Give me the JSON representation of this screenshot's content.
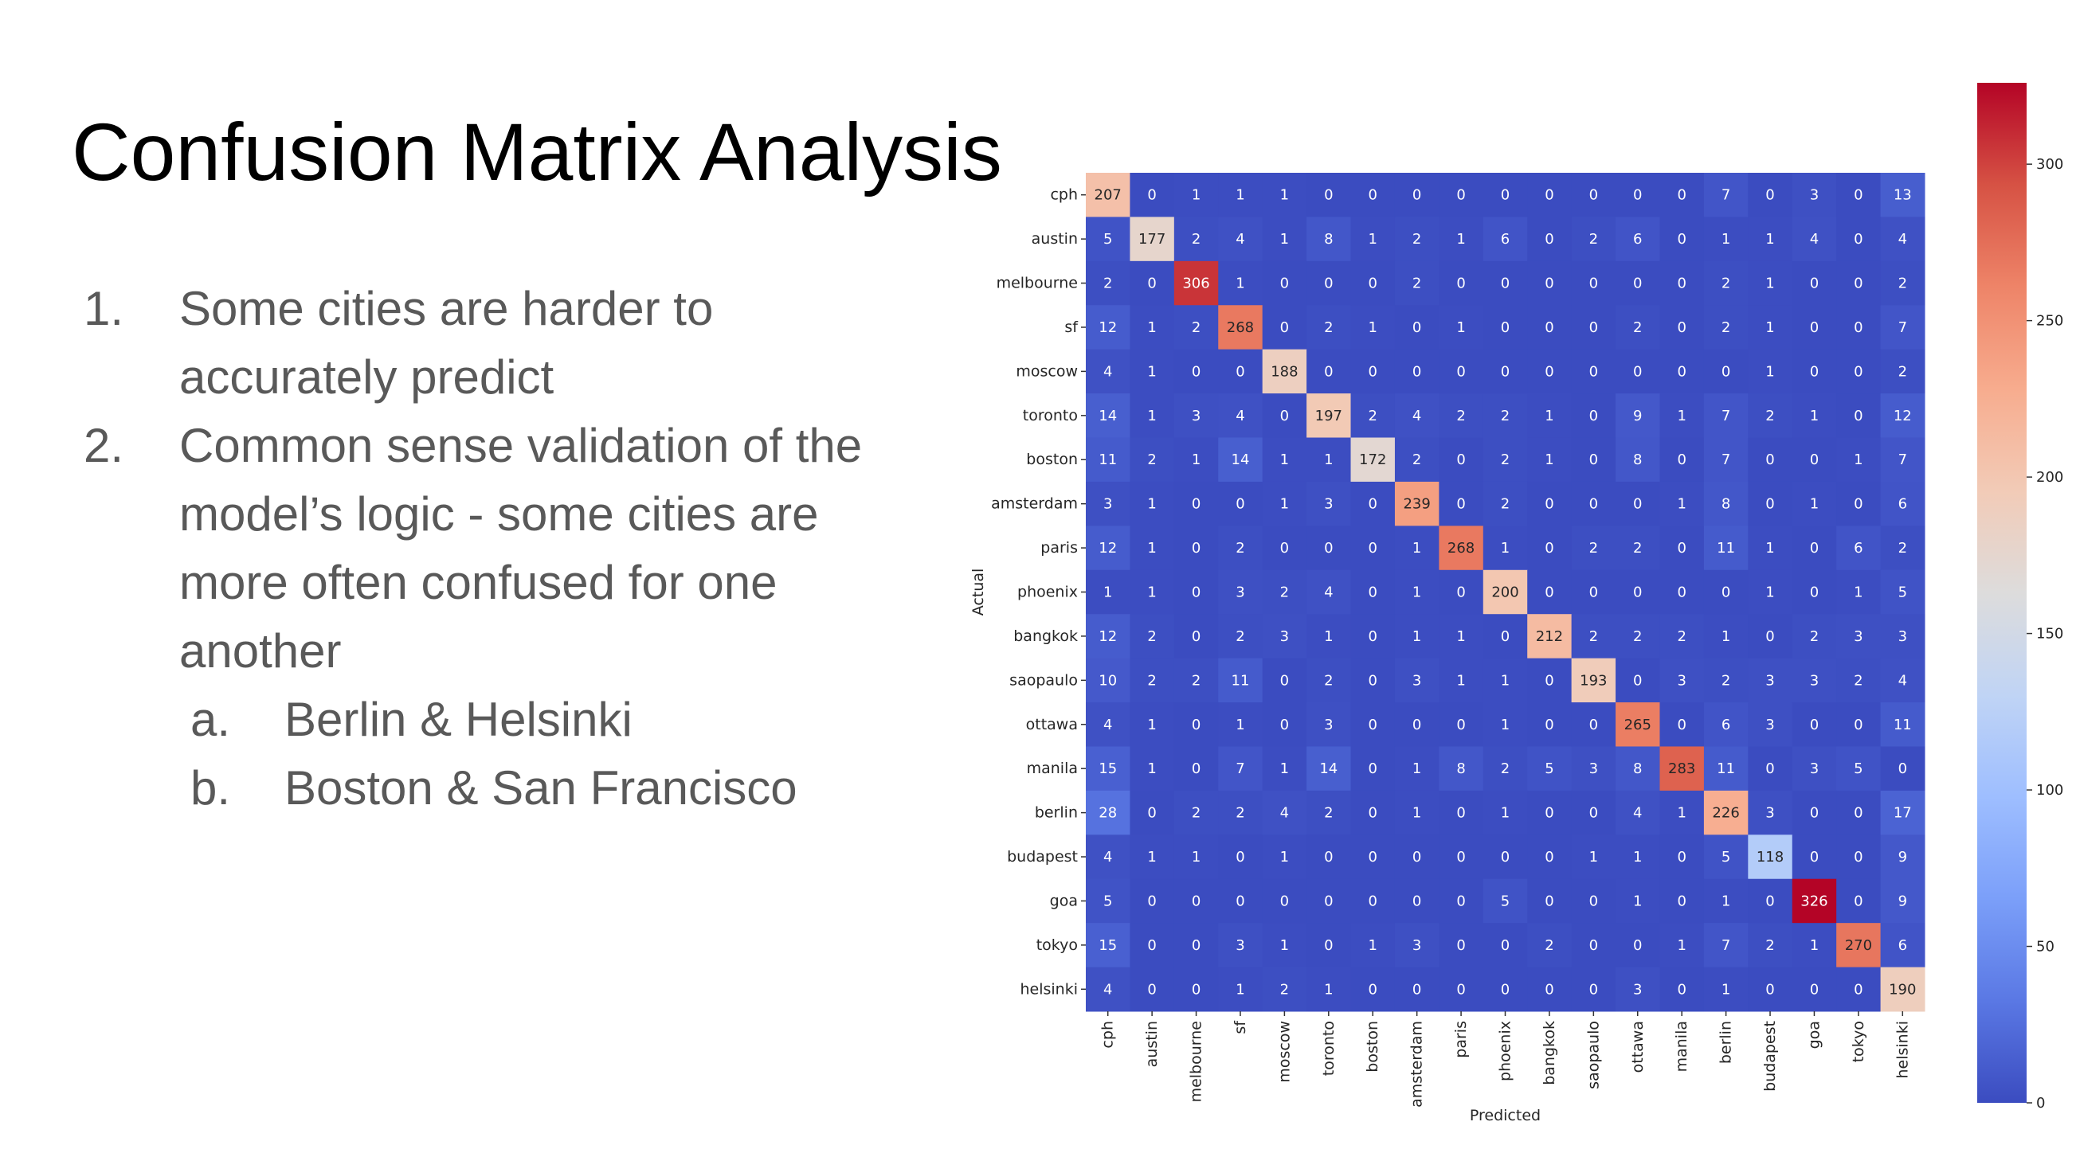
{
  "slide": {
    "title": "Confusion Matrix Analysis",
    "items": [
      {
        "number": "1.",
        "text": "Some cities are harder to accurately predict"
      },
      {
        "number": "2.",
        "text": "Common sense validation of the model’s logic - some cities are more often confused for one another",
        "subitems": [
          {
            "number": "a.",
            "text": "Berlin & Helsinki"
          },
          {
            "number": "b.",
            "text": "Boston & San Francisco"
          }
        ]
      }
    ]
  },
  "chart_data": {
    "type": "heatmap",
    "x_label": "Predicted",
    "y_label": "Actual",
    "categories": [
      "cph",
      "austin",
      "melbourne",
      "sf",
      "moscow",
      "toronto",
      "boston",
      "amsterdam",
      "paris",
      "phoenix",
      "bangkok",
      "saopaulo",
      "ottawa",
      "manila",
      "berlin",
      "budapest",
      "goa",
      "tokyo",
      "helsinki"
    ],
    "values": [
      [
        207,
        0,
        1,
        1,
        1,
        0,
        0,
        0,
        0,
        0,
        0,
        0,
        0,
        0,
        7,
        0,
        3,
        0,
        13
      ],
      [
        5,
        177,
        2,
        4,
        1,
        8,
        1,
        2,
        1,
        6,
        0,
        2,
        6,
        0,
        1,
        1,
        4,
        0,
        4
      ],
      [
        2,
        0,
        306,
        1,
        0,
        0,
        0,
        2,
        0,
        0,
        0,
        0,
        0,
        0,
        2,
        1,
        0,
        0,
        2
      ],
      [
        12,
        1,
        2,
        268,
        0,
        2,
        1,
        0,
        1,
        0,
        0,
        0,
        2,
        0,
        2,
        1,
        0,
        0,
        7
      ],
      [
        4,
        1,
        0,
        0,
        188,
        0,
        0,
        0,
        0,
        0,
        0,
        0,
        0,
        0,
        0,
        1,
        0,
        0,
        2
      ],
      [
        14,
        1,
        3,
        4,
        0,
        197,
        2,
        4,
        2,
        2,
        1,
        0,
        9,
        1,
        7,
        2,
        1,
        0,
        12
      ],
      [
        11,
        2,
        1,
        14,
        1,
        1,
        172,
        2,
        0,
        2,
        1,
        0,
        8,
        0,
        7,
        0,
        0,
        1,
        7
      ],
      [
        3,
        1,
        0,
        0,
        1,
        3,
        0,
        239,
        0,
        2,
        0,
        0,
        0,
        1,
        8,
        0,
        1,
        0,
        6
      ],
      [
        12,
        1,
        0,
        2,
        0,
        0,
        0,
        1,
        268,
        1,
        0,
        2,
        2,
        0,
        11,
        1,
        0,
        6,
        2
      ],
      [
        1,
        1,
        0,
        3,
        2,
        4,
        0,
        1,
        0,
        200,
        0,
        0,
        0,
        0,
        0,
        1,
        0,
        1,
        5
      ],
      [
        12,
        2,
        0,
        2,
        3,
        1,
        0,
        1,
        1,
        0,
        212,
        2,
        2,
        2,
        1,
        0,
        2,
        3,
        3
      ],
      [
        10,
        2,
        2,
        11,
        0,
        2,
        0,
        3,
        1,
        1,
        0,
        193,
        0,
        3,
        2,
        3,
        3,
        2,
        4
      ],
      [
        4,
        1,
        0,
        1,
        0,
        3,
        0,
        0,
        0,
        1,
        0,
        0,
        265,
        0,
        6,
        3,
        0,
        0,
        11
      ],
      [
        15,
        1,
        0,
        7,
        1,
        14,
        0,
        1,
        8,
        2,
        5,
        3,
        8,
        283,
        11,
        0,
        3,
        5,
        0
      ],
      [
        28,
        0,
        2,
        2,
        4,
        2,
        0,
        1,
        0,
        1,
        0,
        0,
        4,
        1,
        226,
        3,
        0,
        0,
        17
      ],
      [
        4,
        1,
        1,
        0,
        1,
        0,
        0,
        0,
        0,
        0,
        0,
        1,
        1,
        0,
        5,
        118,
        0,
        0,
        9
      ],
      [
        5,
        0,
        0,
        0,
        0,
        0,
        0,
        0,
        0,
        5,
        0,
        0,
        1,
        0,
        1,
        0,
        326,
        0,
        9
      ],
      [
        15,
        0,
        0,
        3,
        1,
        0,
        1,
        3,
        0,
        0,
        2,
        0,
        0,
        1,
        7,
        2,
        1,
        270,
        6
      ],
      [
        4,
        0,
        0,
        1,
        2,
        1,
        0,
        0,
        0,
        0,
        0,
        0,
        3,
        0,
        1,
        0,
        0,
        0,
        190
      ]
    ],
    "colormap": "coolwarm",
    "zlim": [
      0,
      326
    ],
    "zticks": [
      0,
      50,
      100,
      150,
      200,
      250,
      300
    ]
  }
}
